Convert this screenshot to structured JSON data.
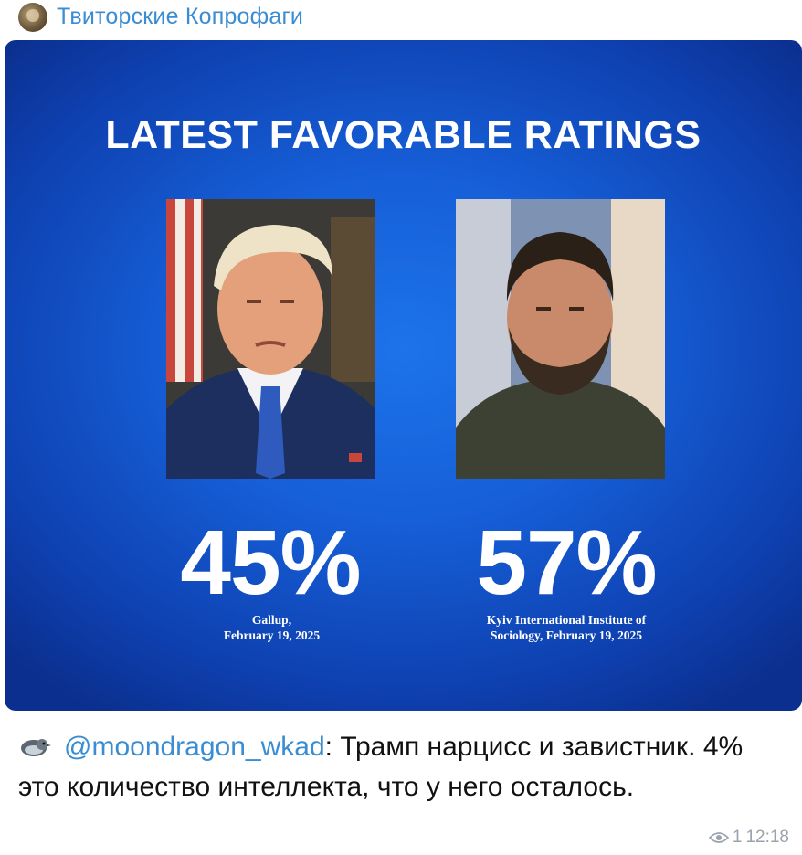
{
  "channel": {
    "name": "Твиторские Копрофаги",
    "avatar_icon": "channel-avatar"
  },
  "post": {
    "headline": "LATEST FAVORABLE RATINGS",
    "left": {
      "percent": "45%",
      "source_line1": "Gallup,",
      "source_line2": "February 19, 2025",
      "photo_icon": "portrait-photo"
    },
    "right": {
      "percent": "57%",
      "source_line1": "Kyiv International Institute of",
      "source_line2": "Sociology, February 19, 2025",
      "photo_icon": "portrait-photo"
    },
    "background_color": "#165fd8"
  },
  "comment": {
    "author_icon": "bird-icon",
    "author": "@moondragon_wkad",
    "separator": ":",
    "text": " Трамп нарцисс и завистник. 4% это количество интеллекта, что у него осталось."
  },
  "meta": {
    "views_icon": "eye-icon",
    "views": "1",
    "time": "12:18"
  }
}
